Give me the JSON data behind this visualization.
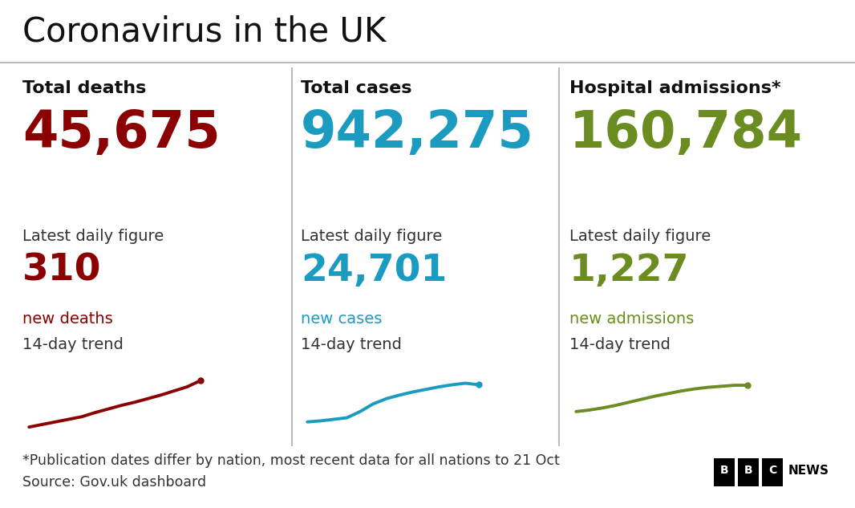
{
  "title": "Coronavirus in the UK",
  "background_color": "#ffffff",
  "title_color": "#111111",
  "title_fontsize": 30,
  "divider_color": "#bbbbbb",
  "columns": [
    {
      "label": "Total deaths",
      "total": "45,675",
      "total_color": "#8b0000",
      "daily_label": "Latest daily figure",
      "daily_value": "310",
      "daily_value_color": "#8b0000",
      "daily_unit": "new deaths",
      "daily_unit_color": "#8b0000",
      "trend_label": "14-day trend",
      "trend_color": "#8b0000",
      "trend_x": [
        0,
        1,
        2,
        3,
        4,
        5,
        6,
        7,
        8,
        9,
        10,
        11,
        12,
        13
      ],
      "trend_y": [
        0.1,
        0.15,
        0.2,
        0.25,
        0.3,
        0.38,
        0.45,
        0.52,
        0.58,
        0.65,
        0.72,
        0.8,
        0.88,
        1.0
      ]
    },
    {
      "label": "Total cases",
      "total": "942,275",
      "total_color": "#1a9bbf",
      "daily_label": "Latest daily figure",
      "daily_value": "24,701",
      "daily_value_color": "#1a9bbf",
      "daily_unit": "new cases",
      "daily_unit_color": "#1a9bbf",
      "trend_label": "14-day trend",
      "trend_color": "#1a9bbf",
      "trend_x": [
        0,
        1,
        2,
        3,
        4,
        5,
        6,
        7,
        8,
        9,
        10,
        11,
        12,
        13
      ],
      "trend_y": [
        0.2,
        0.22,
        0.25,
        0.28,
        0.4,
        0.55,
        0.65,
        0.72,
        0.78,
        0.83,
        0.88,
        0.92,
        0.95,
        0.92
      ]
    },
    {
      "label": "Hospital admissions*",
      "total": "160,784",
      "total_color": "#6b8c21",
      "daily_label": "Latest daily figure",
      "daily_value": "1,227",
      "daily_value_color": "#6b8c21",
      "daily_unit": "new admissions",
      "daily_unit_color": "#6b8c21",
      "trend_label": "14-day trend",
      "trend_color": "#6b8c21",
      "trend_x": [
        0,
        1,
        2,
        3,
        4,
        5,
        6,
        7,
        8,
        9,
        10,
        11,
        12,
        13
      ],
      "trend_y": [
        0.4,
        0.43,
        0.47,
        0.52,
        0.58,
        0.64,
        0.7,
        0.75,
        0.8,
        0.84,
        0.87,
        0.89,
        0.91,
        0.91
      ]
    }
  ],
  "footnote1": "*Publication dates differ by nation, most recent data for all nations to 21 Oct",
  "footnote2": "Source: Gov.uk dashboard",
  "footnote_color": "#333333",
  "footnote_fontsize": 12.5
}
